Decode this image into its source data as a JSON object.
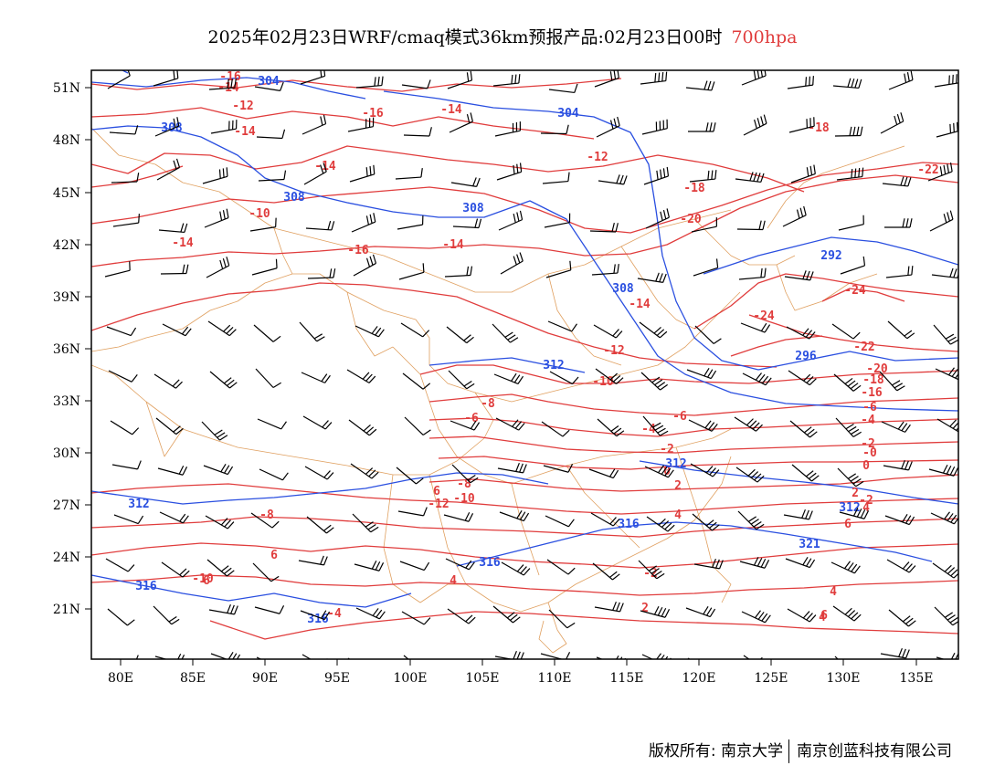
{
  "header": {
    "title": "2025年02月23日WRF/cmaq模式36km预报产品:02月23日00时",
    "level": "700hpa"
  },
  "colors": {
    "temperature": "#e03c3c",
    "geopotential": "#2a4fe0",
    "border": "#e0a060",
    "wind": "#000000",
    "level_text": "#e03c3c"
  },
  "axes": {
    "lon_labels": [
      "80E",
      "85E",
      "90E",
      "95E",
      "100E",
      "105E",
      "110E",
      "115E",
      "120E",
      "125E",
      "130E",
      "135E"
    ],
    "lat_labels": [
      "51N",
      "48N",
      "45N",
      "42N",
      "39N",
      "36N",
      "33N",
      "30N",
      "27N",
      "24N",
      "21N"
    ]
  },
  "map": {
    "layers": [
      "temperature-contours",
      "geopotential-height-contours",
      "wind-barbs",
      "province-borders"
    ],
    "temperature_labels": [
      "-16",
      "-14",
      "-12",
      "-14",
      "-16",
      "-14",
      "-14",
      "-12",
      "-10",
      "-14",
      "-16",
      "-14",
      "-18",
      "-18",
      "-20",
      "-22",
      "-24",
      "-24",
      "-22",
      "-20",
      "-18",
      "-16",
      "-14",
      "-12",
      "-10",
      "-8",
      "-6",
      "-4",
      "-2",
      "0",
      "2",
      "4",
      "6",
      "-10",
      "-8",
      "-6",
      "-4",
      "-2",
      "0",
      "2",
      "4",
      "6",
      "-2",
      "2",
      "4",
      "6",
      "4",
      "6",
      "-12",
      "-10",
      "-8",
      "-6",
      "-4",
      "-2",
      "-0",
      "6",
      "4",
      "6"
    ],
    "height_labels": [
      "304",
      "308",
      "308",
      "304",
      "308",
      "292",
      "308",
      "296",
      "312",
      "312",
      "312",
      "316",
      "316",
      "316",
      "316",
      "321",
      "312"
    ]
  },
  "footer": {
    "copyright_label": "版权所有:",
    "owner1": "南京大学",
    "owner2": "南京创蓝科技有限公司"
  }
}
